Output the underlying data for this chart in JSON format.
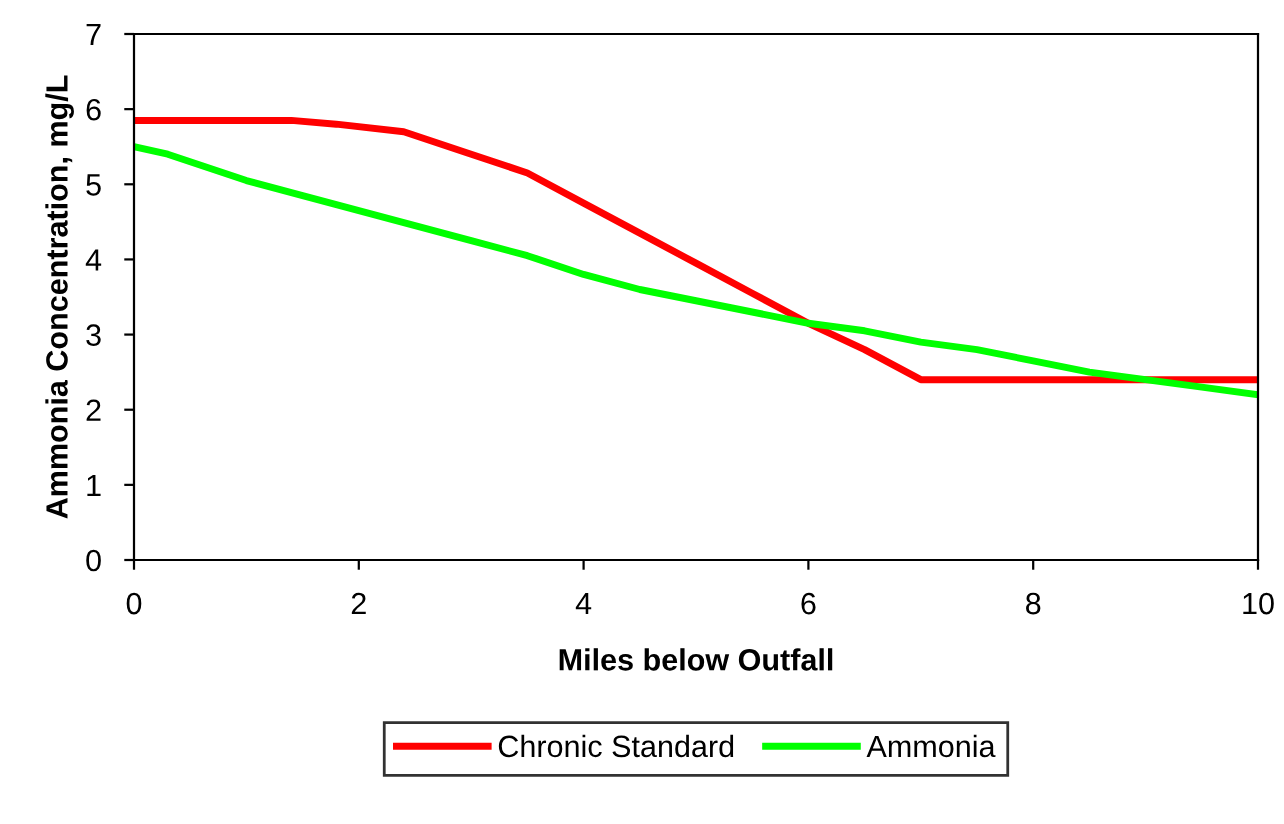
{
  "chart_data": {
    "type": "line",
    "xlabel": "Miles below Outfall",
    "ylabel": "Ammonia Concentration, mg/L",
    "xlim": [
      0,
      10
    ],
    "xticks": [
      0,
      2,
      4,
      6,
      8,
      10
    ],
    "ylim": [
      0,
      7
    ],
    "yticks": [
      0,
      1,
      2,
      3,
      4,
      5,
      6,
      7
    ],
    "grid": false,
    "legend": "bottom",
    "marker": "none",
    "line_style": "solid",
    "series": [
      {
        "name": "Chronic Standard",
        "color": "#ff0000",
        "x": [
          0,
          1.4,
          1.8,
          2.4,
          3,
          3.5,
          4,
          4.5,
          5,
          5.5,
          6,
          6.5,
          7,
          10
        ],
        "values": [
          5.85,
          5.85,
          5.8,
          5.7,
          5.4,
          5.15,
          4.75,
          4.35,
          3.95,
          3.55,
          3.15,
          2.8,
          2.4,
          2.4
        ]
      },
      {
        "name": "Ammonia",
        "color": "#00ff00",
        "x": [
          0,
          0.3,
          0.6,
          1,
          1.5,
          2,
          2.5,
          3,
          3.5,
          4,
          4.5,
          5,
          5.5,
          6,
          6.5,
          7,
          7.5,
          8,
          8.5,
          9,
          9.5,
          10
        ],
        "values": [
          5.5,
          5.4,
          5.25,
          5.05,
          4.85,
          4.65,
          4.45,
          4.25,
          4.05,
          3.8,
          3.6,
          3.45,
          3.3,
          3.15,
          3.05,
          2.9,
          2.8,
          2.65,
          2.5,
          2.4,
          2.3,
          2.2
        ]
      }
    ]
  }
}
